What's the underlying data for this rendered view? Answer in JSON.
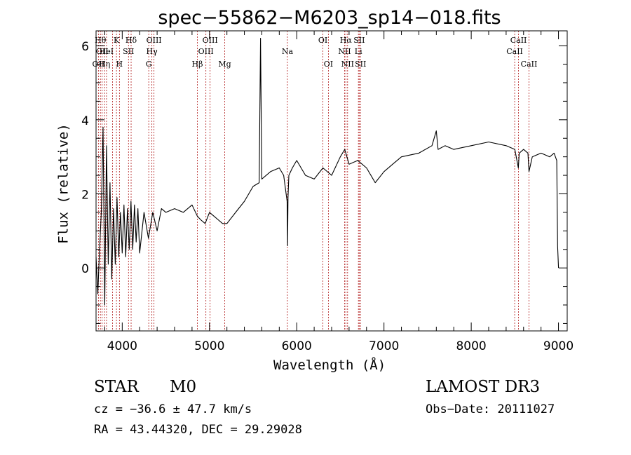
{
  "chart_data": {
    "type": "line",
    "title": "spec−55862−M6203_sp14−018.fits",
    "xlabel": "Wavelength (Å)",
    "ylabel": "Flux (relative)",
    "xlim": [
      3700,
      9100
    ],
    "ylim": [
      -1.7,
      6.4
    ],
    "x_ticks": [
      4000,
      5000,
      6000,
      7000,
      8000,
      9000
    ],
    "y_ticks": [
      0,
      2,
      4,
      6
    ],
    "series": [
      {
        "name": "flux",
        "x": [
          3700,
          3720,
          3740,
          3760,
          3780,
          3800,
          3820,
          3840,
          3860,
          3880,
          3900,
          3920,
          3940,
          3960,
          3980,
          4000,
          4020,
          4040,
          4060,
          4080,
          4100,
          4120,
          4140,
          4160,
          4180,
          4200,
          4250,
          4300,
          4350,
          4400,
          4450,
          4500,
          4600,
          4700,
          4800,
          4860,
          4900,
          4950,
          5000,
          5050,
          5100,
          5150,
          5200,
          5300,
          5400,
          5500,
          5570,
          5585,
          5600,
          5700,
          5800,
          5850,
          5890,
          5895,
          5900,
          5910,
          5950,
          6000,
          6100,
          6200,
          6300,
          6400,
          6500,
          6550,
          6600,
          6700,
          6800,
          6900,
          7000,
          7100,
          7200,
          7400,
          7550,
          7600,
          7620,
          7700,
          7800,
          8000,
          8200,
          8400,
          8500,
          8540,
          8550,
          8600,
          8650,
          8662,
          8700,
          8800,
          8900,
          8950,
          8980,
          8990,
          9000
        ],
        "y": [
          0.3,
          -0.7,
          0.5,
          1.5,
          3.8,
          -1.0,
          3.3,
          0.1,
          2.3,
          -0.3,
          1.6,
          0.1,
          1.9,
          0.3,
          1.5,
          0.4,
          1.7,
          0.3,
          1.6,
          0.5,
          1.8,
          0.5,
          1.7,
          0.7,
          1.6,
          0.4,
          1.5,
          0.8,
          1.5,
          1.0,
          1.6,
          1.5,
          1.6,
          1.5,
          1.7,
          1.4,
          1.3,
          1.2,
          1.5,
          1.4,
          1.3,
          1.2,
          1.2,
          1.5,
          1.8,
          2.2,
          2.3,
          6.2,
          2.4,
          2.6,
          2.7,
          2.5,
          1.8,
          0.6,
          1.9,
          2.5,
          2.7,
          2.9,
          2.5,
          2.4,
          2.7,
          2.5,
          3.0,
          3.2,
          2.8,
          2.9,
          2.7,
          2.3,
          2.6,
          2.8,
          3.0,
          3.1,
          3.3,
          3.7,
          3.2,
          3.3,
          3.2,
          3.3,
          3.4,
          3.3,
          3.2,
          2.7,
          3.1,
          3.2,
          3.1,
          2.6,
          3.0,
          3.1,
          3.0,
          3.1,
          2.9,
          0.6,
          0.0
        ]
      }
    ],
    "lines": [
      {
        "wl": 3727,
        "labels": [
          "OII"
        ],
        "row": 3
      },
      {
        "wl": 3750,
        "labels": [
          "Hθ"
        ],
        "row": 1
      },
      {
        "wl": 3770,
        "labels": [
          "OII"
        ],
        "row": 2
      },
      {
        "wl": 3798,
        "labels": [
          "Hη"
        ],
        "row": 3
      },
      {
        "wl": 3820,
        "labels": [
          "HeI"
        ],
        "row": 2
      },
      {
        "wl": 3889,
        "labels": [],
        "row": 0
      },
      {
        "wl": 3934,
        "labels": [
          "K"
        ],
        "row": 1
      },
      {
        "wl": 3968,
        "labels": [
          "H"
        ],
        "row": 3
      },
      {
        "wl": 4072,
        "labels": [
          "SII"
        ],
        "row": 2
      },
      {
        "wl": 4102,
        "labels": [
          "Hδ"
        ],
        "row": 1
      },
      {
        "wl": 4304,
        "labels": [
          "G"
        ],
        "row": 3
      },
      {
        "wl": 4340,
        "labels": [
          "Hγ"
        ],
        "row": 2
      },
      {
        "wl": 4364,
        "labels": [
          "OIII"
        ],
        "row": 1
      },
      {
        "wl": 4861,
        "labels": [
          "Hβ"
        ],
        "row": 3
      },
      {
        "wl": 4959,
        "labels": [
          "OIII"
        ],
        "row": 2
      },
      {
        "wl": 5007,
        "labels": [
          "OIII"
        ],
        "row": 1
      },
      {
        "wl": 5175,
        "labels": [
          "Mg"
        ],
        "row": 3
      },
      {
        "wl": 5893,
        "labels": [
          "Na"
        ],
        "row": 2
      },
      {
        "wl": 6300,
        "labels": [
          "OI"
        ],
        "row": 1
      },
      {
        "wl": 6363,
        "labels": [
          "OI"
        ],
        "row": 3
      },
      {
        "wl": 6548,
        "labels": [
          "NII"
        ],
        "row": 2
      },
      {
        "wl": 6563,
        "labels": [
          "Hα"
        ],
        "row": 1
      },
      {
        "wl": 6583,
        "labels": [
          "NII"
        ],
        "row": 3
      },
      {
        "wl": 6707,
        "labels": [
          "Li"
        ],
        "row": 2
      },
      {
        "wl": 6716,
        "labels": [
          "SII"
        ],
        "row": 1
      },
      {
        "wl": 6731,
        "labels": [
          "SII"
        ],
        "row": 3
      },
      {
        "wl": 8498,
        "labels": [
          "CaII"
        ],
        "row": 2
      },
      {
        "wl": 8542,
        "labels": [
          "CaII"
        ],
        "row": 1
      },
      {
        "wl": 8662,
        "labels": [
          "CaII"
        ],
        "row": 3
      }
    ]
  },
  "info": {
    "class": "STAR",
    "subclass": "M0",
    "survey": "LAMOST DR3",
    "cz": "cz = −36.6 ± 47.7 km/s",
    "obs_date": "Obs−Date: 20111027",
    "radec": "RA =  43.44320, DEC =  29.29028"
  }
}
